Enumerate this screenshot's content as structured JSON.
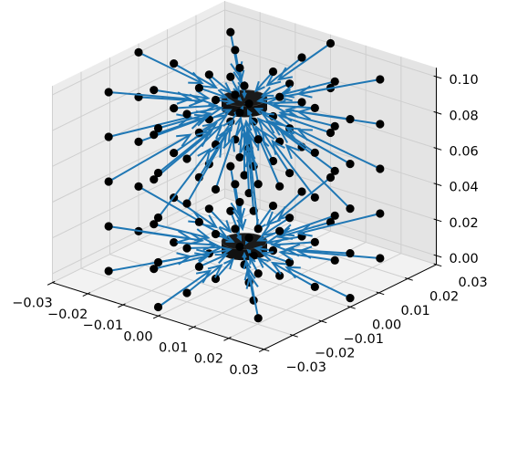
{
  "chart_data": {
    "type": "quiver3d",
    "title": "",
    "xlabel": "",
    "ylabel": "",
    "zlabel": "",
    "x_ticks": [
      "−0.03",
      "−0.02",
      "−0.01",
      "0.00",
      "0.01",
      "0.02",
      "0.03"
    ],
    "y_ticks": [
      "−0.03",
      "−0.02",
      "−0.01",
      "0.00",
      "0.01",
      "0.02",
      "0.03"
    ],
    "z_ticks": [
      "0.00",
      "0.02",
      "0.04",
      "0.06",
      "0.08",
      "0.10"
    ],
    "xlim": [
      -0.03,
      0.03
    ],
    "ylim": [
      -0.03,
      0.03
    ],
    "zlim": [
      -0.005,
      0.105
    ],
    "grid": true,
    "colors": {
      "arrow": "#1f77b4",
      "point": "#000000",
      "magnet": "#111111",
      "pane_left": "#ececec",
      "pane_right": "#e4e4e4",
      "pane_floor": "#f2f2f2"
    },
    "magnets": [
      {
        "name": "top-magnet",
        "center": [
          0,
          0,
          0.09
        ],
        "radius": 0.005,
        "height": 0.006
      },
      {
        "name": "bottom-magnet",
        "center": [
          0,
          0,
          0.01
        ],
        "radius": 0.005,
        "height": 0.006
      }
    ],
    "sample_grid": {
      "radii": [
        0.01,
        0.02,
        0.03
      ],
      "angles_deg": [
        0,
        45,
        90,
        135,
        180,
        225,
        270,
        315
      ],
      "z_levels": [
        0.0,
        0.025,
        0.05,
        0.075,
        0.1
      ],
      "axis_points_z": [
        0.0,
        0.05,
        0.1
      ],
      "arrow_length": 0.6,
      "arrow_direction": "toward the nearer magnet"
    }
  }
}
